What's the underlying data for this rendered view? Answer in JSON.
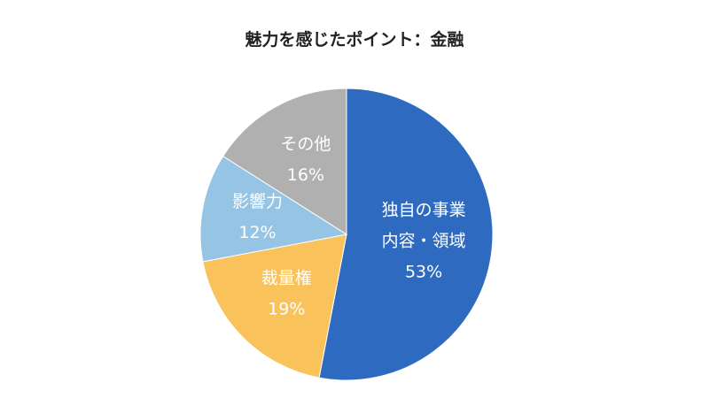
{
  "chart_data": {
    "type": "pie",
    "title": "魅力を感じたポイント：金融",
    "categories": [
      "独自の事業内容・領域",
      "裁量権",
      "影響力",
      "その他"
    ],
    "label_lines": [
      [
        "独自の事業",
        "内容・領域"
      ],
      [
        "裁量権"
      ],
      [
        "影響力"
      ],
      [
        "その他"
      ]
    ],
    "values": [
      53,
      19,
      12,
      16
    ],
    "value_labels": [
      "53%",
      "19%",
      "12%",
      "16%"
    ],
    "colors": [
      "#2e6bc0",
      "#f9c25a",
      "#96c4e4",
      "#b0b0b0"
    ],
    "start": "12 o'clock, clockwise",
    "legend": "none"
  }
}
